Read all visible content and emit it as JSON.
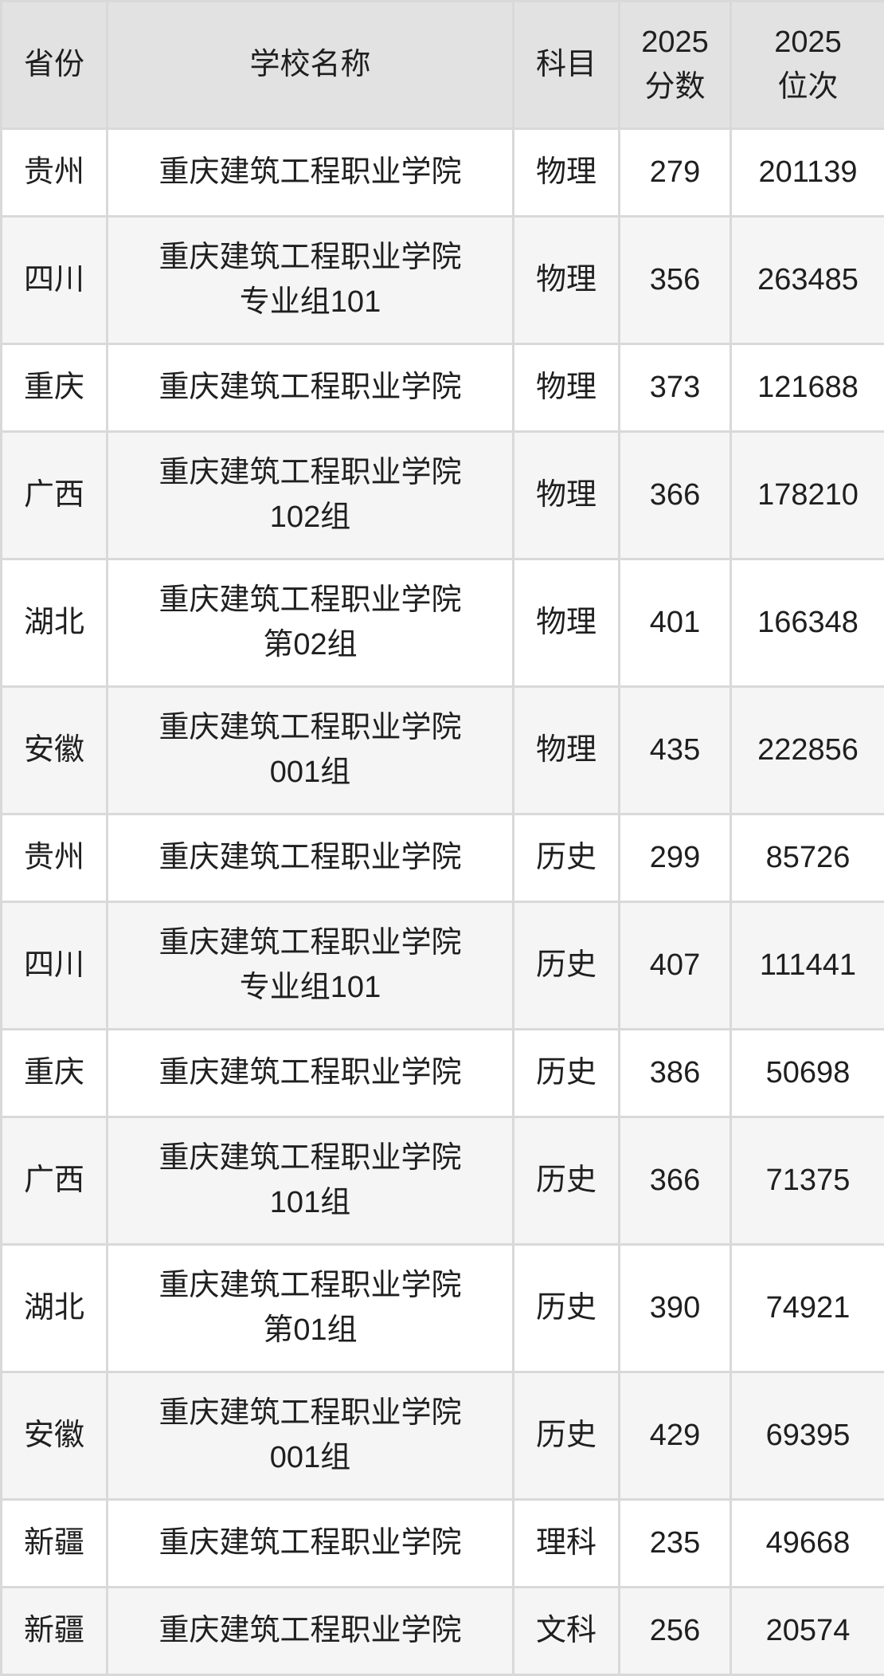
{
  "table": {
    "colors": {
      "header_bg": "#e2e2e2",
      "row_bg": "#ffffff",
      "row_alt_bg": "#f5f5f6",
      "border": "#d9d9d9",
      "text": "#1f1f1f"
    },
    "columns": [
      {
        "label": "省份"
      },
      {
        "label": "学校名称"
      },
      {
        "label": "科目"
      },
      {
        "label": "2025\n分数"
      },
      {
        "label": "2025\n位次"
      }
    ],
    "rows": [
      {
        "province": "贵州",
        "school": "重庆建筑工程职业学院",
        "subject": "物理",
        "score": "279",
        "rank": "201139"
      },
      {
        "province": "四川",
        "school": "重庆建筑工程职业学院\n专业组101",
        "subject": "物理",
        "score": "356",
        "rank": "263485"
      },
      {
        "province": "重庆",
        "school": "重庆建筑工程职业学院",
        "subject": "物理",
        "score": "373",
        "rank": "121688"
      },
      {
        "province": "广西",
        "school": "重庆建筑工程职业学院\n102组",
        "subject": "物理",
        "score": "366",
        "rank": "178210"
      },
      {
        "province": "湖北",
        "school": "重庆建筑工程职业学院\n第02组",
        "subject": "物理",
        "score": "401",
        "rank": "166348"
      },
      {
        "province": "安徽",
        "school": "重庆建筑工程职业学院\n001组",
        "subject": "物理",
        "score": "435",
        "rank": "222856"
      },
      {
        "province": "贵州",
        "school": "重庆建筑工程职业学院",
        "subject": "历史",
        "score": "299",
        "rank": "85726"
      },
      {
        "province": "四川",
        "school": "重庆建筑工程职业学院\n专业组101",
        "subject": "历史",
        "score": "407",
        "rank": "111441"
      },
      {
        "province": "重庆",
        "school": "重庆建筑工程职业学院",
        "subject": "历史",
        "score": "386",
        "rank": "50698"
      },
      {
        "province": "广西",
        "school": "重庆建筑工程职业学院\n101组",
        "subject": "历史",
        "score": "366",
        "rank": "71375"
      },
      {
        "province": "湖北",
        "school": "重庆建筑工程职业学院\n第01组",
        "subject": "历史",
        "score": "390",
        "rank": "74921"
      },
      {
        "province": "安徽",
        "school": "重庆建筑工程职业学院\n001组",
        "subject": "历史",
        "score": "429",
        "rank": "69395"
      },
      {
        "province": "新疆",
        "school": "重庆建筑工程职业学院",
        "subject": "理科",
        "score": "235",
        "rank": "49668"
      },
      {
        "province": "新疆",
        "school": "重庆建筑工程职业学院",
        "subject": "文科",
        "score": "256",
        "rank": "20574"
      }
    ]
  }
}
